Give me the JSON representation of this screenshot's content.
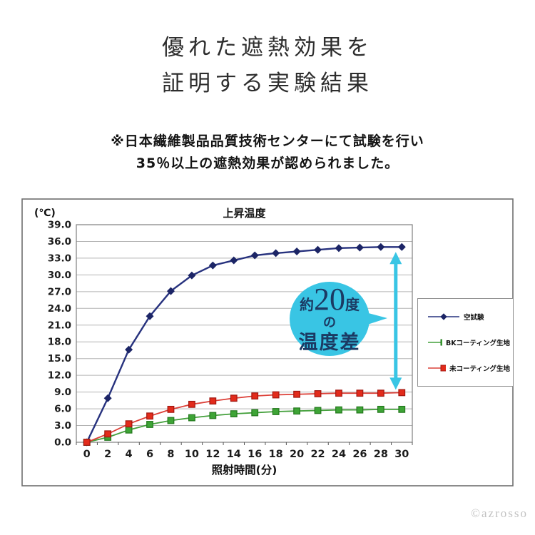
{
  "page": {
    "title_lines": [
      "優れた遮熱効果を",
      "証明する実験結果"
    ],
    "note_lines": [
      "※日本繊維製品品質技術センターにて試験を行い",
      "35％以上の遮熱効果が認められました。"
    ],
    "copyright": "©azrosso"
  },
  "colors": {
    "background": "#ffffff",
    "accent_cyan": "#39c5e4",
    "bubble_text": "#1b3a63",
    "grid": "#b3b3b3",
    "plot_border": "#7f7f7f",
    "frame_border": "#6e6e6e",
    "axis_text": "#1c1c1c"
  },
  "annotation": {
    "prefix": "約",
    "value": "20",
    "unit": "度",
    "particle": "の",
    "suffix": "温度差"
  },
  "chart_data": {
    "type": "line",
    "title": "上昇温度",
    "y_unit_label": "(℃)",
    "xlabel": "照射時間(分)",
    "ylabel": "",
    "ylim": [
      0,
      39
    ],
    "y_step": 3,
    "yticks": [
      0,
      3,
      6,
      9,
      12,
      15,
      18,
      21,
      24,
      27,
      30,
      33,
      36,
      39
    ],
    "grid": "horizontal",
    "legend_position": "right",
    "x": [
      0,
      2,
      4,
      6,
      8,
      10,
      12,
      14,
      16,
      18,
      20,
      22,
      24,
      26,
      28,
      30
    ],
    "series": [
      {
        "name": "空試験",
        "marker": "diamond",
        "line_color": "#27327e",
        "marker_fill": "#1c2566",
        "marker_stroke": "#1c2566",
        "values": [
          0.0,
          7.9,
          16.6,
          22.6,
          27.1,
          29.9,
          31.7,
          32.6,
          33.5,
          33.9,
          34.2,
          34.5,
          34.8,
          34.9,
          35.0,
          35.0
        ]
      },
      {
        "name": "BKコーティング生地",
        "marker": "square",
        "line_color": "#44a03c",
        "marker_fill": "#3ea436",
        "marker_stroke": "#23781d",
        "values": [
          0.0,
          0.9,
          2.2,
          3.2,
          3.9,
          4.4,
          4.8,
          5.1,
          5.3,
          5.5,
          5.6,
          5.7,
          5.8,
          5.8,
          5.9,
          5.9
        ]
      },
      {
        "name": "未コーティング生地",
        "marker": "square",
        "line_color": "#dc4038",
        "marker_fill": "#e22b1b",
        "marker_stroke": "#a01710",
        "values": [
          0.0,
          1.5,
          3.3,
          4.7,
          5.9,
          6.8,
          7.4,
          7.9,
          8.3,
          8.5,
          8.6,
          8.7,
          8.8,
          8.8,
          8.8,
          8.9
        ]
      }
    ],
    "annotation_arrow": {
      "between_series": [
        "空試験",
        "未コーティング生地"
      ],
      "at_x": 30
    }
  }
}
